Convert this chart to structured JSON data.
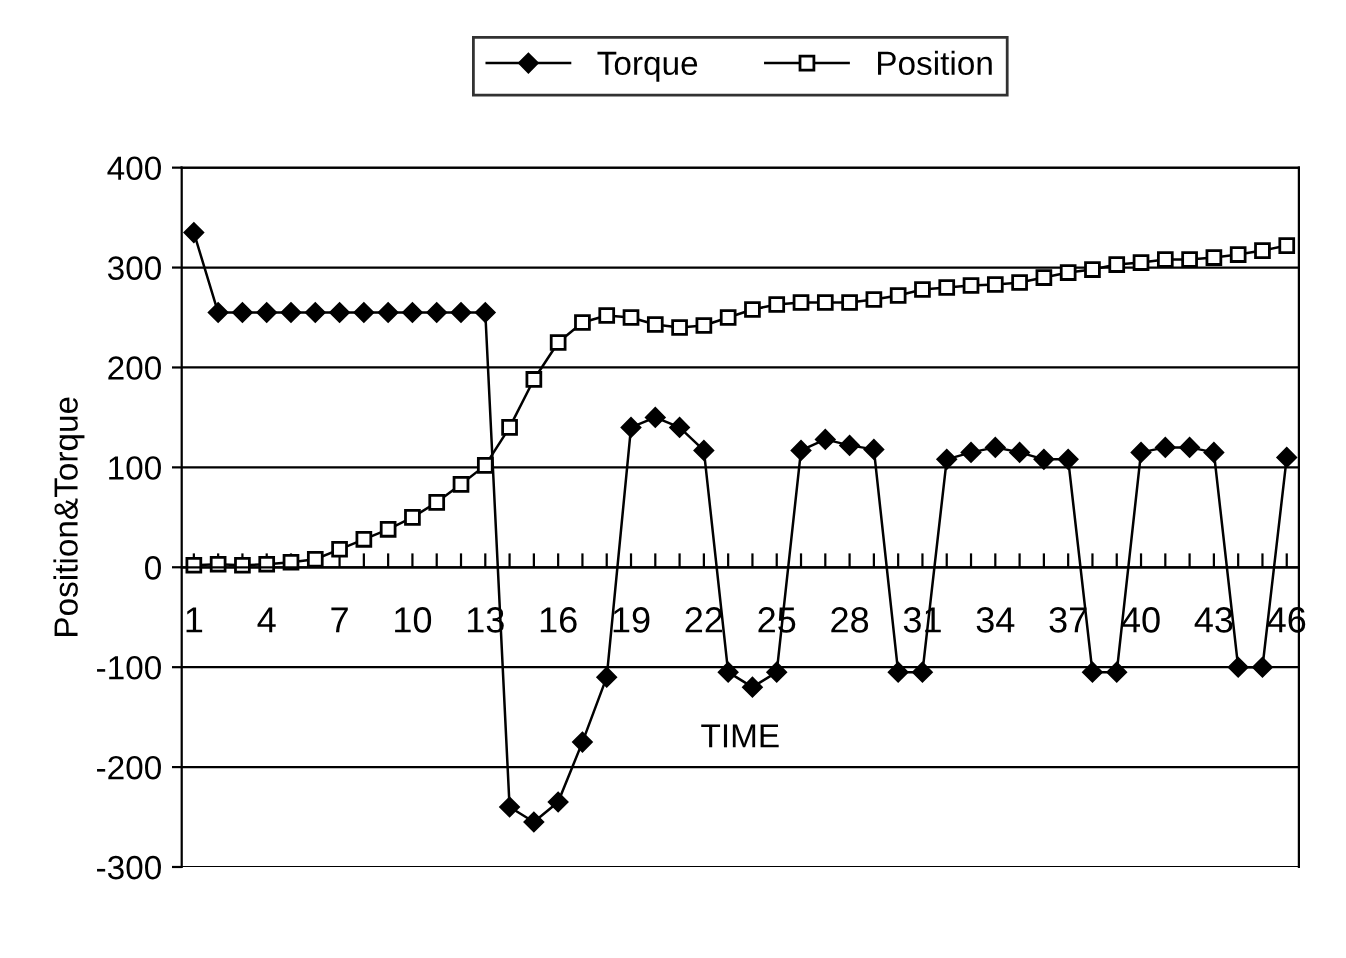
{
  "chart_data": {
    "type": "line",
    "xlabel": "TIME",
    "ylabel": "Position&Torque",
    "categories": [
      "1",
      null,
      null,
      "4",
      null,
      null,
      "7",
      null,
      null,
      "10",
      null,
      null,
      "13",
      null,
      null,
      "16",
      null,
      null,
      "19",
      null,
      null,
      "22",
      null,
      null,
      "25",
      null,
      null,
      "28",
      null,
      null,
      "31",
      null,
      null,
      "34",
      null,
      null,
      "37",
      null,
      null,
      "40",
      null,
      null,
      "43",
      null,
      null,
      "46"
    ],
    "series": [
      {
        "name": "Torque",
        "color": "#000000",
        "marker": "diamond",
        "values": [
          335,
          255,
          255,
          255,
          255,
          255,
          255,
          255,
          255,
          255,
          255,
          255,
          255,
          -240,
          -255,
          -235,
          -175,
          -110,
          140,
          150,
          140,
          117,
          -105,
          -120,
          -105,
          117,
          128,
          122,
          118,
          -105,
          -105,
          108,
          115,
          120,
          115,
          108,
          108,
          -105,
          -105,
          115,
          120,
          120,
          115,
          -100,
          -100,
          110
        ]
      },
      {
        "name": "Position",
        "color": "#000000",
        "marker": "square",
        "values": [
          2,
          3,
          2,
          3,
          5,
          8,
          18,
          28,
          38,
          50,
          65,
          83,
          102,
          140,
          188,
          225,
          245,
          252,
          250,
          243,
          240,
          242,
          250,
          258,
          263,
          265,
          265,
          265,
          268,
          272,
          278,
          280,
          282,
          283,
          285,
          290,
          295,
          298,
          303,
          305,
          308,
          308,
          310,
          313,
          317,
          322
        ]
      }
    ],
    "ylim": [
      -300,
      400
    ],
    "yticks": [
      -300,
      -200,
      -100,
      0,
      100,
      200,
      300,
      400
    ],
    "grid": "y",
    "legend": "top"
  }
}
